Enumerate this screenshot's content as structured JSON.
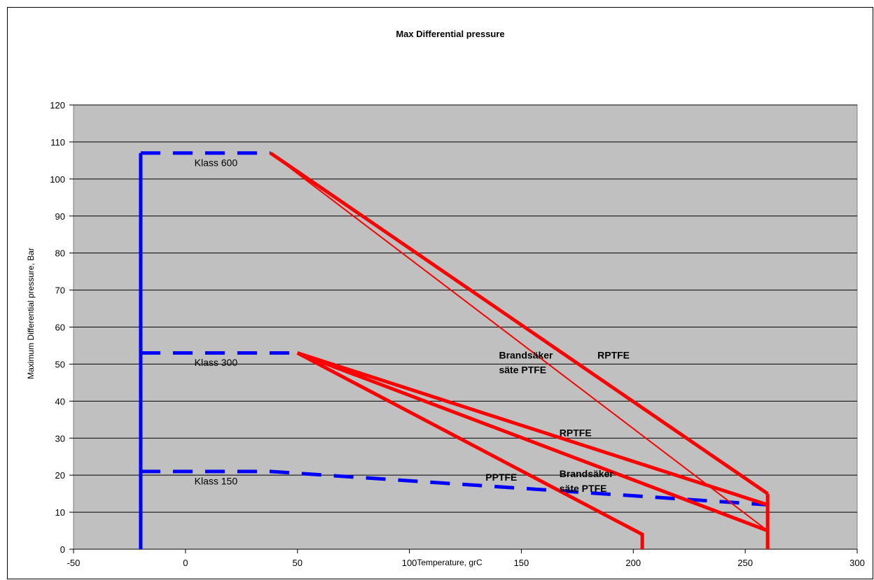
{
  "chart_data": {
    "type": "line",
    "title": "Max Differential pressure",
    "xlabel": "Temperature, grC",
    "ylabel": "Maximum Differential pressure, Bar",
    "xlim": [
      -50,
      300
    ],
    "ylim": [
      0,
      120
    ],
    "x_ticks": [
      -50,
      0,
      50,
      100,
      150,
      200,
      250,
      300
    ],
    "y_ticks": [
      0,
      10,
      20,
      30,
      40,
      50,
      60,
      70,
      80,
      90,
      100,
      110,
      120
    ],
    "grid": "horizontal",
    "plot_background": "#c0c0c0",
    "series": [
      {
        "color": "#0000ff",
        "style": "solid",
        "points": [
          [
            -20,
            0
          ],
          [
            -20,
            107
          ]
        ]
      },
      {
        "color": "#0000ff",
        "style": "dashed",
        "points": [
          [
            -20,
            107
          ],
          [
            38,
            107
          ]
        ]
      },
      {
        "color": "#0000ff",
        "style": "dashed",
        "points": [
          [
            -20,
            53
          ],
          [
            50,
            53
          ]
        ]
      },
      {
        "color": "#0000ff",
        "style": "dashed",
        "points": [
          [
            -20,
            21
          ],
          [
            38,
            21
          ],
          [
            260,
            12
          ]
        ]
      },
      {
        "color": "#ff0000",
        "style": "solid",
        "points": [
          [
            38,
            107
          ],
          [
            260,
            15
          ]
        ]
      },
      {
        "color": "#ff0000",
        "style": "thin",
        "points": [
          [
            38,
            107
          ],
          [
            260,
            5
          ]
        ]
      },
      {
        "color": "#ff0000",
        "style": "solid",
        "points": [
          [
            50,
            53
          ],
          [
            260,
            12
          ]
        ]
      },
      {
        "color": "#ff0000",
        "style": "solid",
        "points": [
          [
            50,
            53
          ],
          [
            260,
            5
          ]
        ]
      },
      {
        "color": "#ff0000",
        "style": "solid",
        "points": [
          [
            50,
            53
          ],
          [
            204,
            4
          ],
          [
            204,
            0
          ]
        ]
      },
      {
        "color": "#ff0000",
        "style": "solid",
        "points": [
          [
            260,
            15
          ],
          [
            260,
            0
          ]
        ]
      }
    ],
    "annotations": [
      {
        "text": "Klass 600",
        "x": 4,
        "y": 103.5,
        "bold": false
      },
      {
        "text": "Klass 300",
        "x": 4,
        "y": 49.5,
        "bold": false
      },
      {
        "text": "Klass 150",
        "x": 4,
        "y": 17.5,
        "bold": false
      },
      {
        "text": "Brandsäker",
        "x": 140,
        "y": 51.5,
        "bold": true
      },
      {
        "text": "säte PTFE",
        "x": 140,
        "y": 47.5,
        "bold": true
      },
      {
        "text": "RPTFE",
        "x": 184,
        "y": 51.5,
        "bold": true
      },
      {
        "text": "RPTFE",
        "x": 167,
        "y": 30.5,
        "bold": true
      },
      {
        "text": "Brandsäker",
        "x": 167,
        "y": 19.5,
        "bold": true
      },
      {
        "text": "säte PTFE",
        "x": 167,
        "y": 15.5,
        "bold": true
      },
      {
        "text": "PPTFE",
        "x": 134,
        "y": 18.5,
        "bold": true
      }
    ]
  }
}
